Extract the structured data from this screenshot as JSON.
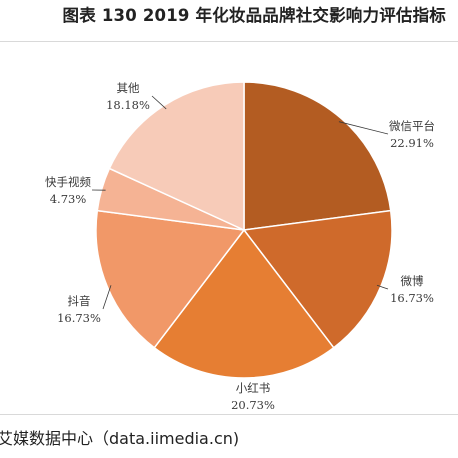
{
  "title": "图表 130 2019 年化妆品品牌社交影响力评估指标",
  "source": "艾媒数据中心（data.iimedia.cn)",
  "chart_data": {
    "type": "pie",
    "title": "图表 130 2019 年化妆品品牌社交影响力评估指标",
    "categories": [
      "微信平台",
      "微博",
      "小红书",
      "抖音",
      "快手视频",
      "其他"
    ],
    "values": [
      22.91,
      16.73,
      20.73,
      16.73,
      4.73,
      18.18
    ],
    "value_labels": [
      "22.91%",
      "16.73%",
      "20.73%",
      "16.73%",
      "4.73%",
      "18.18%"
    ],
    "colors": [
      "#b35c22",
      "#cf6a2b",
      "#e67e33",
      "#f19868",
      "#f5b394",
      "#f7cbb8"
    ],
    "start_angle_deg": 0,
    "direction": "clockwise",
    "legend": "none"
  }
}
